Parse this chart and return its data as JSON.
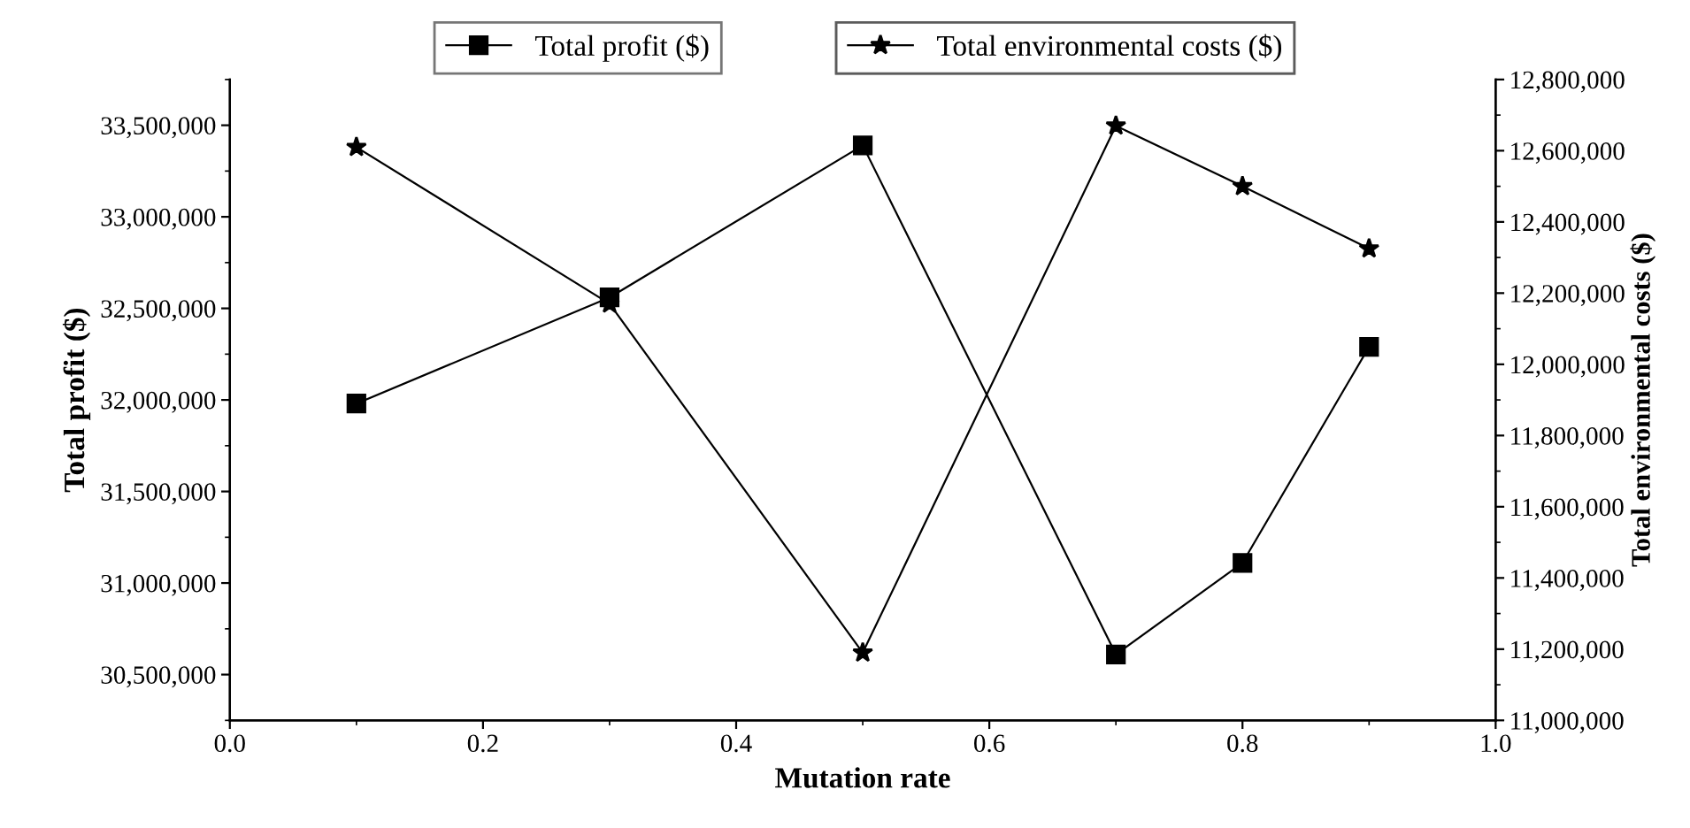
{
  "chart_data": {
    "type": "line",
    "xlabel": "Mutation rate",
    "ylabel": "Total profit ($)",
    "y2label": "Total environmental costs ($)",
    "x": [
      0.1,
      0.3,
      0.5,
      0.7,
      0.8,
      0.9
    ],
    "series": [
      {
        "name": "Total profit ($)",
        "color": "#000000",
        "marker": "square",
        "values": [
          31980000,
          32560000,
          33390000,
          30610000,
          31110000,
          32290000
        ]
      },
      {
        "name": "Total environmental costs ($)",
        "color": "#000000",
        "marker": "star",
        "axis": "y2",
        "values": [
          12610000,
          12170000,
          11190000,
          12670000,
          12500000,
          12325000
        ]
      }
    ],
    "xlim": [
      0.0,
      1.0
    ],
    "xticks": [
      {
        "value": 0.0,
        "label": "0.0"
      },
      0.2,
      0.4,
      0.6,
      0.8,
      {
        "value": 1.0,
        "label": "1.0"
      }
    ],
    "ylim": [
      30250000,
      33750000
    ],
    "yticks": [
      {
        "value": 30500000,
        "label": "30,500,000"
      },
      {
        "value": 31000000,
        "label": "31,000,000"
      },
      {
        "value": 31500000,
        "label": "31,500,000"
      },
      {
        "value": 32000000,
        "label": "32,000,000"
      },
      {
        "value": 32500000,
        "label": "32,500,000"
      },
      {
        "value": 33000000,
        "label": "33,000,000"
      },
      {
        "value": 33500000,
        "label": "33,500,000"
      }
    ],
    "y2lim": [
      11000000,
      12800000
    ],
    "y2ticks": [
      {
        "value": 11000000,
        "label": "11,000,000"
      },
      {
        "value": 11200000,
        "label": "11,200,000"
      },
      {
        "value": 11400000,
        "label": "11,400,000"
      },
      {
        "value": 11600000,
        "label": "11,600,000"
      },
      {
        "value": 11800000,
        "label": "11,800,000"
      },
      {
        "value": 12000000,
        "label": "12,000,000"
      },
      {
        "value": 12200000,
        "label": "12,200,000"
      },
      {
        "value": 12400000,
        "label": "12,400,000"
      },
      {
        "value": 12600000,
        "label": "12,600,000"
      },
      {
        "value": 12800000,
        "label": "12,800,000"
      }
    ],
    "grid": false,
    "legend": "top",
    "line_style": "solid"
  }
}
